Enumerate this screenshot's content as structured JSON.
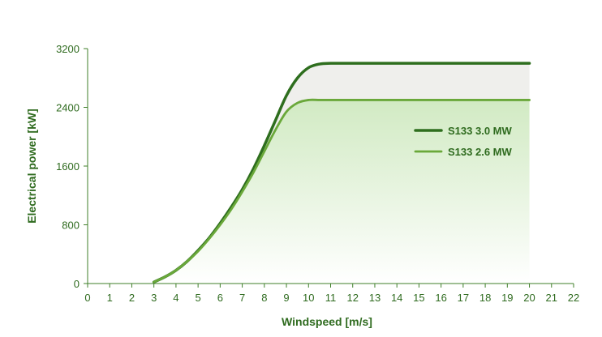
{
  "chart_data": {
    "type": "line",
    "title": "",
    "xlabel": "Windspeed [m/s]",
    "ylabel": "Electrical power [kW]",
    "xlim": [
      0,
      22
    ],
    "ylim": [
      0,
      3200
    ],
    "x_ticks": [
      "0",
      "1",
      "2",
      "3",
      "4",
      "5",
      "6",
      "7",
      "8",
      "9",
      "10",
      "11",
      "12",
      "13",
      "14",
      "15",
      "16",
      "17",
      "18",
      "19",
      "20",
      "21",
      "22"
    ],
    "y_ticks": [
      "0",
      "800",
      "1600",
      "2400",
      "3200"
    ],
    "grid": false,
    "legend_position": "right",
    "series": [
      {
        "name": "S133 3.0 MW",
        "color": "#2e6e1e",
        "x": [
          3,
          3.5,
          4,
          4.5,
          5,
          5.5,
          6,
          6.5,
          7,
          7.5,
          8,
          8.5,
          9,
          9.5,
          10,
          10.5,
          11,
          12,
          13,
          14,
          15,
          16,
          17,
          18,
          19,
          20
        ],
        "y": [
          20,
          90,
          180,
          300,
          450,
          620,
          820,
          1040,
          1280,
          1560,
          1880,
          2220,
          2560,
          2800,
          2940,
          2990,
          3000,
          3000,
          3000,
          3000,
          3000,
          3000,
          3000,
          3000,
          3000,
          3000
        ]
      },
      {
        "name": "S133 2.6 MW",
        "color": "#6aa83a",
        "x": [
          3,
          3.5,
          4,
          4.5,
          5,
          5.5,
          6,
          6.5,
          7,
          7.5,
          8,
          8.5,
          9,
          9.5,
          10,
          10.5,
          11,
          12,
          13,
          14,
          15,
          16,
          17,
          18,
          19,
          20
        ],
        "y": [
          20,
          90,
          180,
          300,
          440,
          610,
          800,
          1010,
          1250,
          1510,
          1800,
          2090,
          2340,
          2460,
          2500,
          2500,
          2500,
          2500,
          2500,
          2500,
          2500,
          2500,
          2500,
          2500,
          2500,
          2500
        ]
      }
    ]
  }
}
